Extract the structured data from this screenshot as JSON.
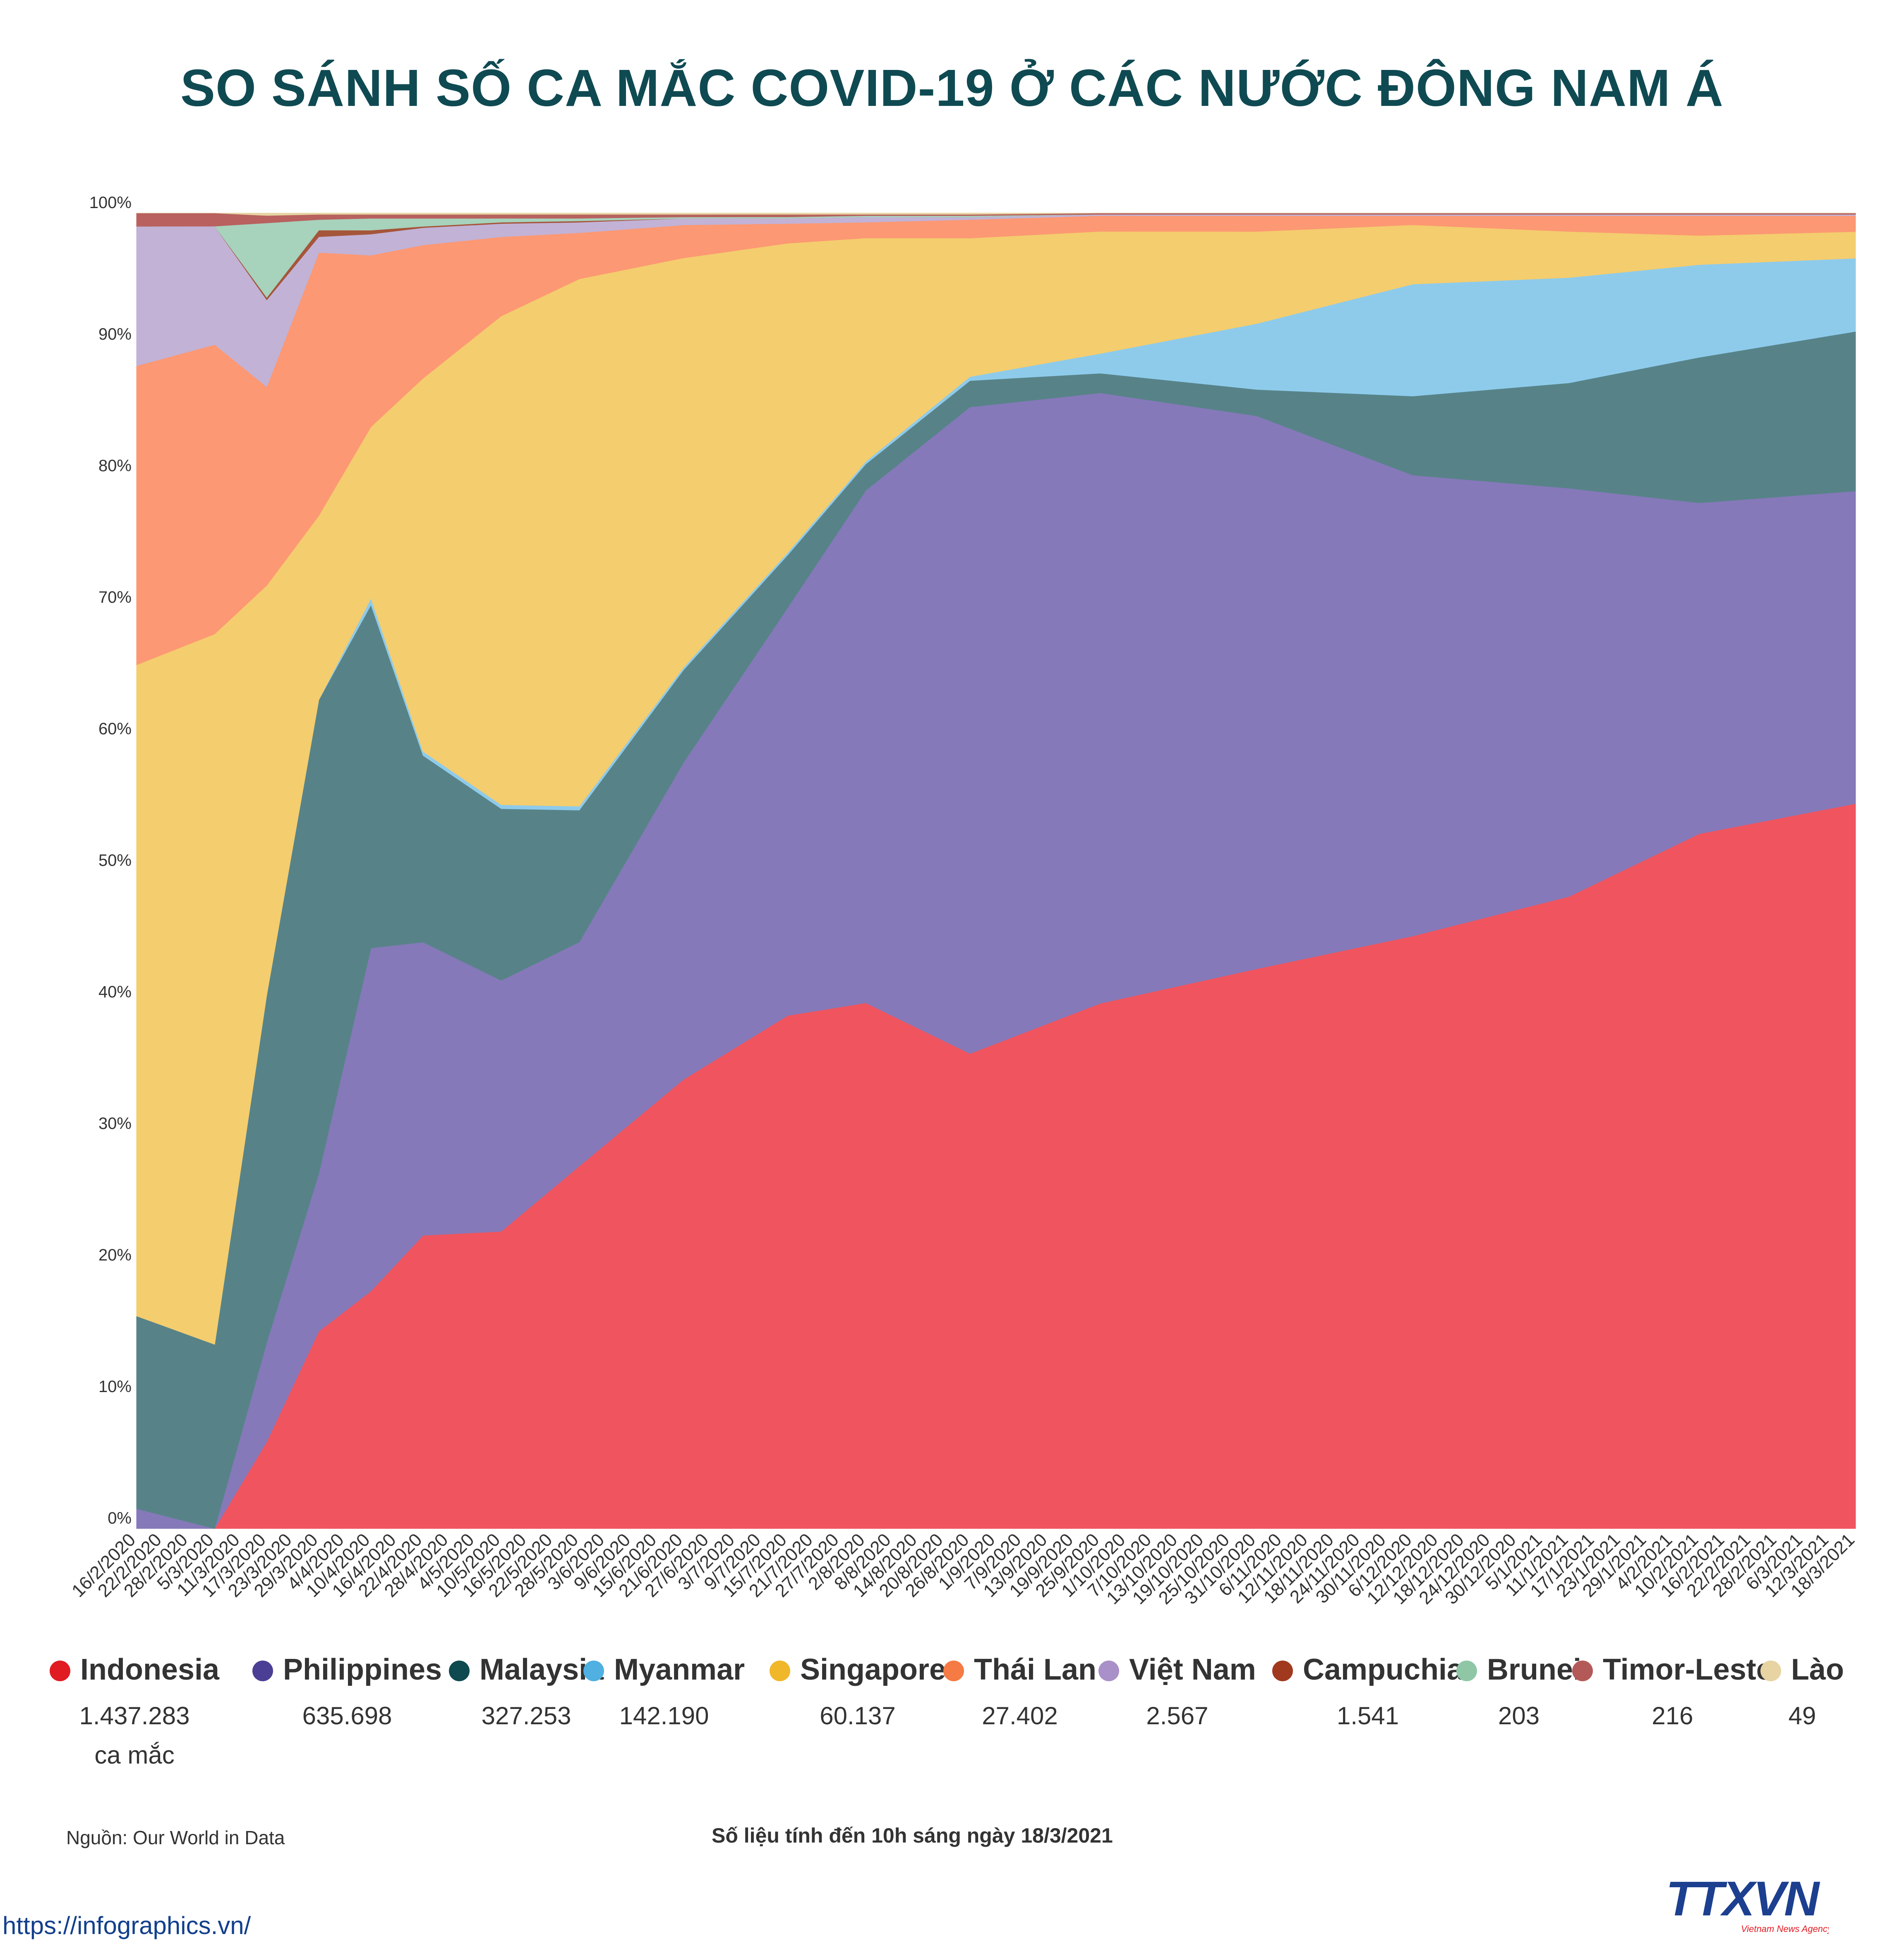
{
  "title": "SO SÁNH SỐ CA MẮC COVID-19 Ở CÁC NƯỚC ĐÔNG NAM Á",
  "chart_data": {
    "type": "area",
    "stacked": true,
    "normalized": true,
    "title": "SO SÁNH SỐ CA MẮC COVID-19 Ở CÁC NƯỚC ĐÔNG NAM Á",
    "ylim": [
      0,
      100
    ],
    "yticks": [
      "0%",
      "10%",
      "20%",
      "30%",
      "40%",
      "50%",
      "60%",
      "70%",
      "80%",
      "90%",
      "100%"
    ],
    "x_ticks": [
      "16/2/2020",
      "22/2/2020",
      "28/2/2020",
      "5/3/2020",
      "11/3/2020",
      "17/3/2020",
      "23/3/2020",
      "29/3/2020",
      "4/4/2020",
      "10/4/2020",
      "16/4/2020",
      "22/4/2020",
      "28/4/2020",
      "4/5/2020",
      "10/5/2020",
      "16/5/2020",
      "22/5/2020",
      "28/5/2020",
      "3/6/2020",
      "9/6/2020",
      "15/6/2020",
      "21/6/2020",
      "27/6/2020",
      "3/7/2020",
      "9/7/2020",
      "15/7/2020",
      "21/7/2020",
      "27/7/2020",
      "2/8/2020",
      "8/8/2020",
      "14/8/2020",
      "20/8/2020",
      "26/8/2020",
      "1/9/2020",
      "7/9/2020",
      "13/9/2020",
      "19/9/2020",
      "25/9/2020",
      "1/10/2020",
      "7/10/2020",
      "13/10/2020",
      "19/10/2020",
      "25/10/2020",
      "31/10/2020",
      "6/11/2020",
      "12/11/2020",
      "18/11/2020",
      "24/11/2020",
      "30/11/2020",
      "6/12/2020",
      "12/12/2020",
      "18/12/2020",
      "24/12/2020",
      "30/12/2020",
      "5/1/2021",
      "11/1/2021",
      "17/1/2021",
      "23/1/2021",
      "29/1/2021",
      "4/2/2021",
      "10/2/2021",
      "16/2/2021",
      "22/2/2021",
      "28/2/2021",
      "6/3/2021",
      "12/3/2021",
      "18/3/2021"
    ],
    "x": [
      "16/2/2020",
      "5/3/2020",
      "17/3/2020",
      "29/3/2020",
      "10/4/2020",
      "22/4/2020",
      "10/5/2020",
      "28/5/2020",
      "21/6/2020",
      "15/7/2020",
      "2/8/2020",
      "26/8/2020",
      "25/9/2020",
      "31/10/2020",
      "6/12/2020",
      "11/1/2021",
      "10/2/2021",
      "18/3/2021"
    ],
    "series": [
      {
        "name": "Indonesia",
        "color": "#f0555f",
        "values": [
          0,
          0,
          7,
          15,
          18,
          22,
          22.5,
          27.5,
          34,
          39,
          40,
          36,
          40,
          42.5,
          45,
          48,
          52.5,
          54.5
        ]
      },
      {
        "name": "Philippines",
        "color": "#8579b9",
        "values": [
          1.5,
          0,
          8,
          12,
          26,
          22,
          19,
          17,
          24,
          31,
          39,
          49,
          46.5,
          42,
          35,
          31,
          25,
          23.5
        ]
      },
      {
        "name": "Malaysia",
        "color": "#578388",
        "values": [
          14.5,
          14,
          28,
          36,
          26,
          14,
          13,
          10,
          7,
          4,
          2,
          2,
          1.5,
          2,
          6,
          8,
          11,
          12
        ]
      },
      {
        "name": "Myanmar",
        "color": "#8ecbeb",
        "values": [
          0,
          0,
          0,
          0,
          0.5,
          0.3,
          0.3,
          0.3,
          0.2,
          0.2,
          0.2,
          0.3,
          1.5,
          5,
          8.5,
          8,
          7,
          5.5
        ]
      },
      {
        "name": "Singapore",
        "color": "#f4cd6e",
        "values": [
          49,
          54,
          33,
          14,
          13,
          28,
          37,
          40,
          31,
          23.5,
          17,
          10.5,
          9.3,
          7,
          4.5,
          3.5,
          2.2,
          2
        ]
      },
      {
        "name": "Thái Lan",
        "color": "#fc9873",
        "values": [
          22.5,
          22,
          16,
          20,
          13,
          10,
          6,
          3.5,
          2.5,
          1.5,
          1.2,
          1.4,
          1.2,
          1.2,
          0.7,
          1.2,
          1.5,
          1.2
        ]
      },
      {
        "name": "Việt Nam",
        "color": "#c2b2d6",
        "values": [
          10.5,
          9,
          7,
          1.2,
          1.6,
          1.3,
          1,
          0.8,
          0.5,
          0.4,
          0.4,
          0.2,
          0.1,
          0.1,
          0.1,
          0.1,
          0.1,
          0.1
        ]
      },
      {
        "name": "Campuchia",
        "color": "#a5553a",
        "values": [
          0,
          0,
          0.2,
          0.5,
          0.3,
          0.1,
          0.1,
          0.1,
          0,
          0,
          0,
          0,
          0,
          0,
          0,
          0,
          0,
          0
        ]
      },
      {
        "name": "Brunei",
        "color": "#a7d2bc",
        "values": [
          0,
          0,
          6,
          0.8,
          0.9,
          0.6,
          0.3,
          0.2,
          0.1,
          0.1,
          0.1,
          0.1,
          0,
          0,
          0,
          0,
          0,
          0
        ]
      },
      {
        "name": "Timor-Leste",
        "color": "#b8615f",
        "values": [
          1,
          1,
          0.6,
          0.4,
          0.3,
          0.3,
          0.3,
          0.3,
          0.2,
          0.2,
          0.1,
          0.1,
          0.1,
          0.1,
          0.1,
          0.1,
          0.1,
          0.1
        ]
      },
      {
        "name": "Lào",
        "color": "#e6d4a2",
        "values": [
          0,
          0,
          0.2,
          0.1,
          0.1,
          0.1,
          0.1,
          0.1,
          0.1,
          0.1,
          0.1,
          0.1,
          0,
          0,
          0,
          0,
          0,
          0
        ]
      }
    ]
  },
  "legend": [
    {
      "name": "Indonesia",
      "color": "#e11b22",
      "value": "1.437.283",
      "unit": "ca mắc"
    },
    {
      "name": "Philippines",
      "color": "#4b3f95",
      "value": "635.698"
    },
    {
      "name": "Malaysia",
      "color": "#0e4a4f",
      "value": "327.253"
    },
    {
      "name": "Myanmar",
      "color": "#4fb0e1",
      "value": "142.190"
    },
    {
      "name": "Singapore",
      "color": "#f0b72a",
      "value": "60.137"
    },
    {
      "name": "Thái Lan",
      "color": "#f57a43",
      "value": "27.402"
    },
    {
      "name": "Việt Nam",
      "color": "#a990c8",
      "value": "2.567"
    },
    {
      "name": "Campuchia",
      "color": "#a0391e",
      "value": "1.541"
    },
    {
      "name": "Brunei",
      "color": "#8fc7a6",
      "value": "203"
    },
    {
      "name": "Timor-Leste",
      "color": "#b35a58",
      "value": "216"
    },
    {
      "name": "Lào",
      "color": "#e8d3a3",
      "value": "49"
    }
  ],
  "source": "Nguồn: Our World in Data",
  "note": "Số liệu tính đến 10h sáng ngày 18/3/2021",
  "url": "https://infographics.vn/",
  "logo": {
    "text": "TTXVN",
    "subtitle": "Vietnam News Agency",
    "color": "#1c3f8f",
    "accent": "#e11b22"
  }
}
